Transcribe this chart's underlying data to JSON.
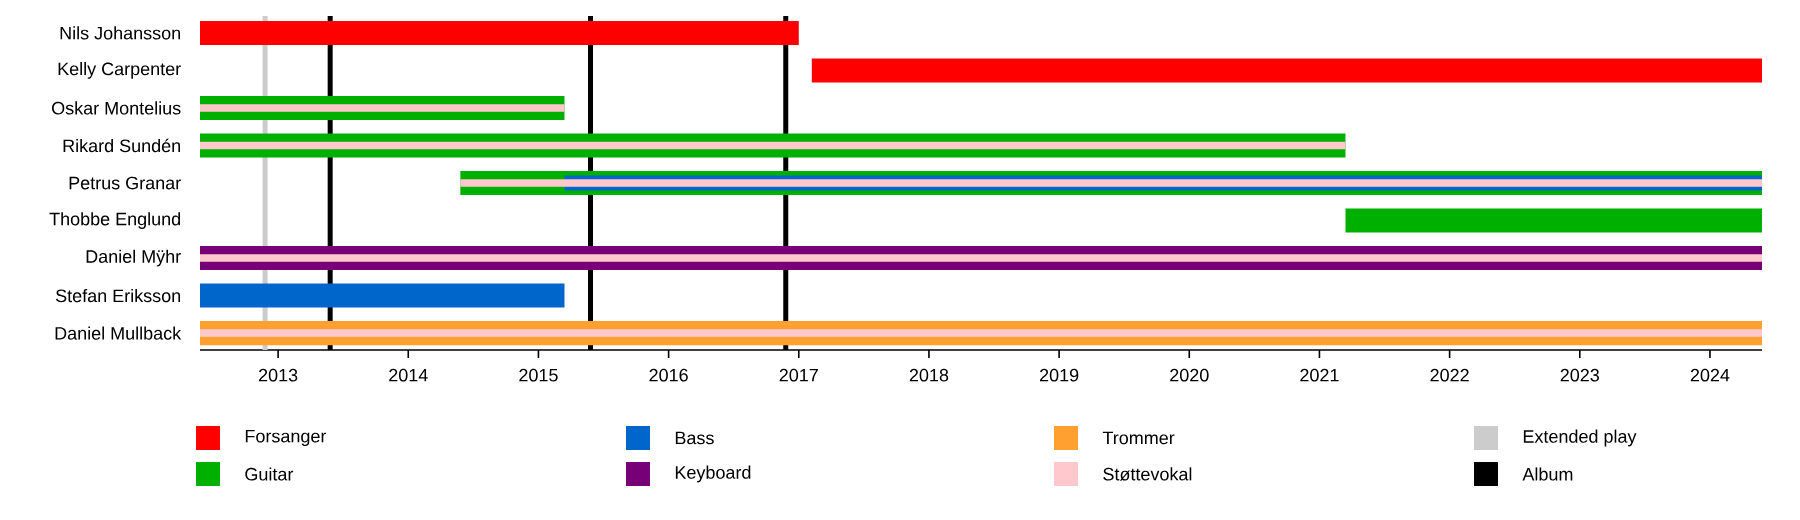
{
  "chart_data": {
    "type": "bar",
    "orientation": "horizontal",
    "legend": "bottom",
    "categories": [
      "Nils Johansson",
      "Kelly Carpenter",
      "Oskar Montelius",
      "Rikard Sundén",
      "Petrus Granar",
      "Thobbe Englund",
      "Daniel Mÿhr",
      "Stefan Eriksson",
      "Daniel Mullback"
    ],
    "xlim": [
      2012.4,
      2024.4
    ],
    "xticks": [
      2013,
      2014,
      2015,
      2016,
      2017,
      2018,
      2019,
      2020,
      2021,
      2022,
      2023,
      2024
    ],
    "series": [
      {
        "name": "Forsanger",
        "color": "#ff0000",
        "base": [
          2012.4,
          2017.1,
          null,
          null,
          null,
          null,
          null,
          null,
          null
        ],
        "values": [
          4.6,
          7.3,
          null,
          null,
          null,
          null,
          null,
          null,
          null
        ]
      },
      {
        "name": "Guitar",
        "color": "#00b000",
        "base": [
          null,
          null,
          2012.4,
          2012.4,
          2014.4,
          2021.2,
          null,
          null,
          null
        ],
        "values": [
          null,
          null,
          2.8,
          8.8,
          10.0,
          3.2,
          null,
          null,
          null
        ]
      },
      {
        "name": "Bass",
        "color": "#0066cc",
        "base": [
          null,
          null,
          null,
          null,
          2015.2,
          null,
          null,
          2012.4,
          null
        ],
        "values": [
          null,
          null,
          null,
          null,
          9.2,
          null,
          null,
          2.8,
          null
        ]
      },
      {
        "name": "Keyboard",
        "color": "#770077",
        "base": [
          null,
          null,
          null,
          null,
          null,
          null,
          2012.4,
          null,
          null
        ],
        "values": [
          null,
          null,
          null,
          null,
          null,
          null,
          12.0,
          null,
          null
        ]
      },
      {
        "name": "Trommer",
        "color": "#ffa030",
        "base": [
          null,
          null,
          null,
          null,
          null,
          null,
          null,
          null,
          2012.4
        ],
        "values": [
          null,
          null,
          null,
          null,
          null,
          null,
          null,
          null,
          12.0
        ]
      },
      {
        "name": "Støttevokal",
        "color": "#ffc8cc",
        "base": [
          null,
          null,
          2012.4,
          2012.4,
          2014.4,
          null,
          2012.4,
          null,
          2012.4
        ],
        "values": [
          null,
          null,
          2.8,
          8.8,
          10.0,
          null,
          12.0,
          null,
          12.0
        ]
      }
    ],
    "ref_lines": [
      {
        "axis": "x",
        "value": 2012.9,
        "label": "Extended play",
        "color": "#cccccc"
      },
      {
        "axis": "x",
        "value": 2013.4,
        "label": "Album",
        "color": "#000000"
      },
      {
        "axis": "x",
        "value": 2015.4,
        "color": "#000000"
      },
      {
        "axis": "x",
        "value": 2016.9,
        "color": "#000000"
      }
    ]
  }
}
